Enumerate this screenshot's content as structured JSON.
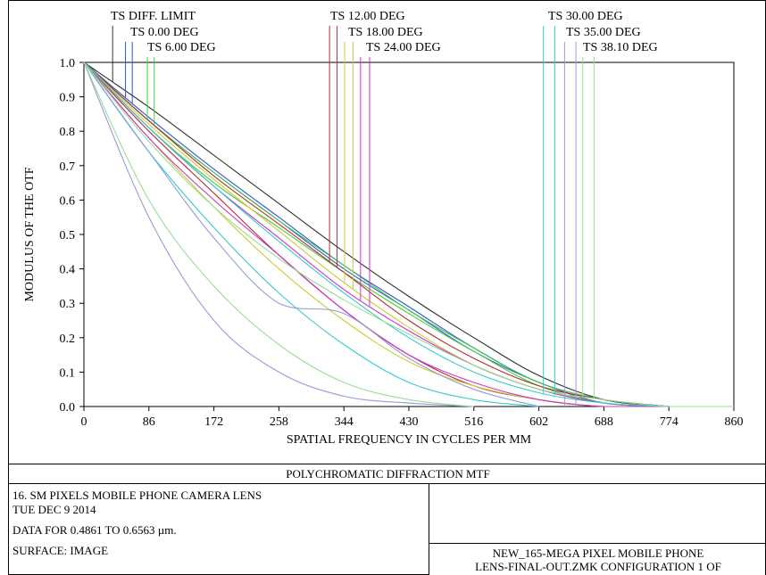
{
  "chart_data": {
    "type": "line",
    "title": "POLYCHROMATIC DIFFRACTION MTF",
    "xlabel": "SPATIAL FREQUENCY IN CYCLES PER MM",
    "ylabel": "MODULUS OF THE OTF",
    "xlim": [
      0,
      860
    ],
    "ylim": [
      0,
      1.0
    ],
    "x_ticks": [
      "0",
      "86",
      "172",
      "258",
      "344",
      "430",
      "516",
      "602",
      "688",
      "774",
      "860"
    ],
    "y_ticks": [
      "0.0",
      "0.1",
      "0.2",
      "0.3",
      "0.4",
      "0.5",
      "0.6",
      "0.7",
      "0.8",
      "0.9",
      "1.0"
    ],
    "grid": false,
    "legend_labels": [
      {
        "text": "TS DIFF. LIMIT",
        "color": "#303030",
        "tags": [
          38
        ]
      },
      {
        "text": "TS 0.00 DEG",
        "color": "#3355cc",
        "tags": [
          55,
          64
        ]
      },
      {
        "text": "TS 6.00 DEG",
        "color": "#44cc44",
        "tags": [
          84,
          93
        ]
      },
      {
        "text": "TS 12.00 DEG",
        "color": "#b03030",
        "tags": [
          325,
          335
        ]
      },
      {
        "text": "TS 18.00 DEG",
        "color": "#cccc33",
        "tags": [
          345,
          356
        ]
      },
      {
        "text": "TS 24.00 DEG",
        "color": "#cc33cc",
        "tags": [
          366,
          378
        ]
      },
      {
        "text": "TS 30.00 DEG",
        "color": "#33cccc",
        "tags": [
          608,
          623
        ]
      },
      {
        "text": "TS 35.00 DEG",
        "color": "#9999dd",
        "tags": [
          636,
          651
        ]
      },
      {
        "text": "TS 38.10 DEG",
        "color": "#99dd99",
        "tags": [
          660,
          675
        ]
      }
    ],
    "series": [
      {
        "color": "#303030",
        "x": [
          0,
          86,
          172,
          258,
          344,
          430,
          516,
          602,
          688,
          774
        ],
        "y": [
          1.0,
          0.87,
          0.73,
          0.59,
          0.45,
          0.32,
          0.2,
          0.09,
          0.02,
          0.0
        ]
      },
      {
        "color": "#3355cc",
        "x": [
          0,
          86,
          172,
          258,
          344,
          430,
          516,
          602,
          688,
          774
        ],
        "y": [
          1.0,
          0.84,
          0.69,
          0.55,
          0.41,
          0.29,
          0.17,
          0.07,
          0.02,
          0.0
        ]
      },
      {
        "color": "#3355cc",
        "x": [
          0,
          86,
          172,
          258,
          344,
          430,
          516,
          602,
          688,
          774
        ],
        "y": [
          1.0,
          0.83,
          0.68,
          0.54,
          0.4,
          0.28,
          0.16,
          0.07,
          0.01,
          0.0
        ]
      },
      {
        "color": "#44cc44",
        "x": [
          0,
          86,
          172,
          258,
          344,
          430,
          516,
          602,
          688,
          774
        ],
        "y": [
          1.0,
          0.83,
          0.68,
          0.54,
          0.41,
          0.28,
          0.17,
          0.07,
          0.02,
          0.0
        ]
      },
      {
        "color": "#44cc44",
        "x": [
          0,
          86,
          172,
          258,
          344,
          430,
          516,
          602,
          688,
          774
        ],
        "y": [
          1.0,
          0.81,
          0.65,
          0.52,
          0.39,
          0.27,
          0.16,
          0.06,
          0.01,
          0.0
        ]
      },
      {
        "color": "#b03030",
        "x": [
          0,
          86,
          172,
          258,
          344,
          430,
          516,
          602,
          688,
          774
        ],
        "y": [
          1.0,
          0.83,
          0.67,
          0.53,
          0.39,
          0.25,
          0.14,
          0.06,
          0.02,
          0.0
        ]
      },
      {
        "color": "#b03030",
        "x": [
          0,
          86,
          172,
          258,
          344,
          430,
          516,
          602,
          688,
          774
        ],
        "y": [
          1.0,
          0.8,
          0.62,
          0.44,
          0.28,
          0.15,
          0.06,
          0.02,
          0.0,
          0.0
        ]
      },
      {
        "color": "#cccc33",
        "x": [
          0,
          86,
          172,
          258,
          344,
          430,
          516,
          602,
          688,
          774
        ],
        "y": [
          1.0,
          0.82,
          0.66,
          0.51,
          0.36,
          0.23,
          0.12,
          0.05,
          0.01,
          0.0
        ]
      },
      {
        "color": "#cccc33",
        "x": [
          0,
          86,
          172,
          258,
          344,
          430,
          516,
          602,
          688,
          774
        ],
        "y": [
          1.0,
          0.78,
          0.58,
          0.4,
          0.25,
          0.13,
          0.06,
          0.02,
          0.0,
          0.0
        ]
      },
      {
        "color": "#cc33cc",
        "x": [
          0,
          86,
          172,
          258,
          344,
          430,
          516,
          602,
          688,
          774
        ],
        "y": [
          1.0,
          0.81,
          0.64,
          0.49,
          0.34,
          0.22,
          0.12,
          0.05,
          0.01,
          0.0
        ]
      },
      {
        "color": "#cc33cc",
        "x": [
          0,
          86,
          172,
          258,
          344,
          430,
          516,
          602,
          688,
          774
        ],
        "y": [
          1.0,
          0.78,
          0.6,
          0.44,
          0.28,
          0.15,
          0.07,
          0.02,
          0.0,
          0.0
        ]
      },
      {
        "color": "#33cccc",
        "x": [
          0,
          86,
          172,
          258,
          344,
          430,
          516,
          602,
          688,
          774
        ],
        "y": [
          1.0,
          0.81,
          0.64,
          0.48,
          0.33,
          0.2,
          0.1,
          0.04,
          0.01,
          0.0
        ]
      },
      {
        "color": "#33cccc",
        "x": [
          0,
          86,
          172,
          258,
          344,
          430,
          516,
          602
        ],
        "y": [
          1.0,
          0.74,
          0.52,
          0.33,
          0.18,
          0.07,
          0.02,
          0.0
        ]
      },
      {
        "color": "#9999dd",
        "x": [
          0,
          86,
          172,
          258,
          344,
          430,
          516,
          602
        ],
        "y": [
          1.0,
          0.74,
          0.49,
          0.3,
          0.27,
          0.14,
          0.05,
          0.0
        ]
      },
      {
        "color": "#9999dd",
        "x": [
          0,
          86,
          172,
          258,
          344,
          430,
          516
        ],
        "y": [
          1.0,
          0.55,
          0.25,
          0.1,
          0.03,
          0.01,
          0.0
        ]
      },
      {
        "color": "#99dd99",
        "x": [
          0,
          86,
          172,
          258,
          344,
          430,
          516,
          602,
          688,
          774,
          860
        ],
        "y": [
          1.0,
          0.77,
          0.58,
          0.43,
          0.31,
          0.21,
          0.12,
          0.05,
          0.02,
          0.0,
          0.0
        ]
      },
      {
        "color": "#99dd99",
        "x": [
          0,
          86,
          172,
          258,
          344,
          430,
          516
        ],
        "y": [
          1.0,
          0.6,
          0.35,
          0.18,
          0.07,
          0.02,
          0.0
        ]
      }
    ]
  },
  "info": {
    "lens_title": "16. SM PIXELS MOBILE PHONE CAMERA LENS",
    "date": "TUE DEC 9 2014",
    "data_range": "DATA FOR 0.4861 TO 0.6563 µm.",
    "surface": "SURFACE: IMAGE",
    "file_line1": "NEW_165-MEGA PIXEL MOBILE PHONE",
    "file_line2": "LENS-FINAL-OUT.ZMK CONFIGURATION 1 OF"
  }
}
